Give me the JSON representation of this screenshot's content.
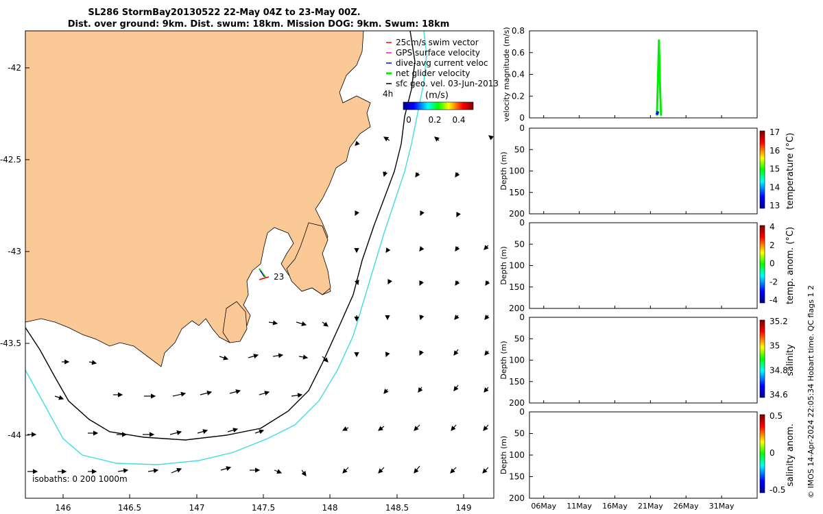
{
  "title": {
    "line1": "SL286 StormBay20130522 22-May 04Z to 23-May 00Z.",
    "line2": "Dist. over ground: 9km. Dist. swum: 18km. Mission DOG: 9km. Swum: 18km"
  },
  "map": {
    "x_ticks": [
      "146",
      "146.5",
      "147",
      "147.5",
      "148",
      "148.5",
      "149"
    ],
    "y_ticks": [
      "-42",
      "-42.5",
      "-43",
      "-43.5",
      "-44"
    ],
    "legend": [
      {
        "label": "25cm/s swim vector",
        "color": "#ff0000"
      },
      {
        "label": "GPS surface velocity",
        "color": "#ff00ff"
      },
      {
        "label": "dive-avg current veloc",
        "color": "#0000ff"
      },
      {
        "label": "net glider velocity",
        "color": "#00ee00"
      },
      {
        "label": "sfc geo. vel. 03-Jun-2013",
        "color": "#000000"
      }
    ],
    "legend_extra": "4h",
    "colorbar_unit": "(m/s)",
    "colorbar_ticks": [
      "0",
      "0.2",
      "0.4"
    ],
    "track_label": "23",
    "isobaths_label": "isobaths: 0   200  1000m",
    "colors": {
      "land": "#fbc995",
      "iso200": "#000000",
      "iso1000": "#3fdde0"
    }
  },
  "chart_data": [
    {
      "type": "line",
      "ylabel": "velocity magnitude (m/s)",
      "ylim": [
        0,
        0.8
      ],
      "y_ticks": [
        "0.8",
        "0.6",
        "0.4",
        "0.2",
        "0"
      ],
      "series": [
        {
          "color": "#00ee00",
          "x": [
            "22May",
            "22May",
            "22May",
            "22May",
            "22May"
          ],
          "values": [
            0.02,
            0.35,
            0.72,
            0.3,
            0.02
          ]
        },
        {
          "color": "#0000ff",
          "x": [
            "22May",
            "22May"
          ],
          "values": [
            0.03,
            0.06
          ]
        }
      ]
    },
    {
      "type": "scatter",
      "ylabel": "Depth (m)",
      "y_ticks": [
        "0",
        "50",
        "100",
        "150",
        "200"
      ],
      "ylim": [
        0,
        200
      ],
      "colorbar_label": "temperature (°C)",
      "colorbar_ticks": [
        "17",
        "16",
        "15",
        "14",
        "13"
      ]
    },
    {
      "type": "scatter",
      "ylabel": "Depth (m)",
      "y_ticks": [
        "0",
        "50",
        "100",
        "150",
        "200"
      ],
      "ylim": [
        0,
        200
      ],
      "colorbar_label": "temp. anom. (°C)",
      "colorbar_ticks": [
        "4",
        "2",
        "0",
        "-2",
        "-4"
      ]
    },
    {
      "type": "scatter",
      "ylabel": "Depth (m)",
      "y_ticks": [
        "0",
        "50",
        "100",
        "150",
        "200"
      ],
      "ylim": [
        0,
        200
      ],
      "colorbar_label": "salinity",
      "colorbar_ticks": [
        "35.2",
        "35",
        "34.8",
        "34.6"
      ]
    },
    {
      "type": "scatter",
      "ylabel": "Depth (m)",
      "y_ticks": [
        "0",
        "50",
        "100",
        "150",
        "200"
      ],
      "ylim": [
        0,
        200
      ],
      "colorbar_label": "salinity anom.",
      "colorbar_ticks": [
        "0.5",
        "0",
        "-0.5"
      ],
      "x_ticks": [
        "06May",
        "11May",
        "16May",
        "21May",
        "26May",
        "31May"
      ]
    }
  ],
  "footer": "© IMOS 14-Apr-2024 22:05:34 Hobart time. QC flags 1  2"
}
